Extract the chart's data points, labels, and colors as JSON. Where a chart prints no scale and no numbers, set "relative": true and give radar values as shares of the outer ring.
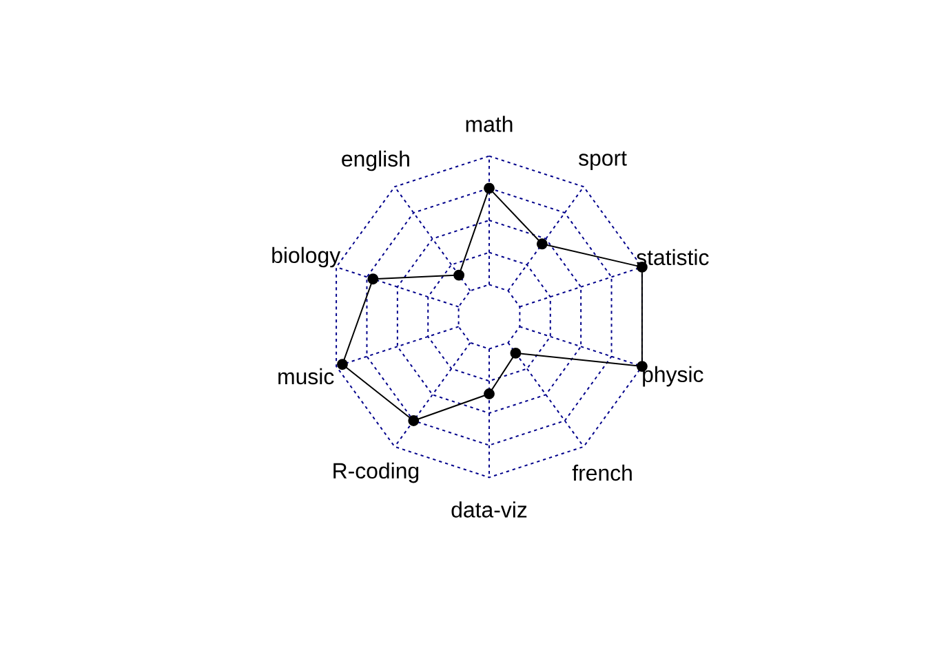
{
  "chart_data": {
    "type": "radar",
    "relative": true,
    "categories": [
      "math",
      "sport",
      "statistic",
      "physic",
      "french",
      "data-viz",
      "R-coding",
      "music",
      "biology",
      "english"
    ],
    "series": [
      {
        "color": "#000000",
        "values": [
          0.8,
          0.56,
          1.0,
          1.0,
          0.28,
          0.48,
          0.8,
          0.96,
          0.76,
          0.32
        ]
      }
    ],
    "grid": true,
    "marker": "circle",
    "line_style": "solid"
  }
}
